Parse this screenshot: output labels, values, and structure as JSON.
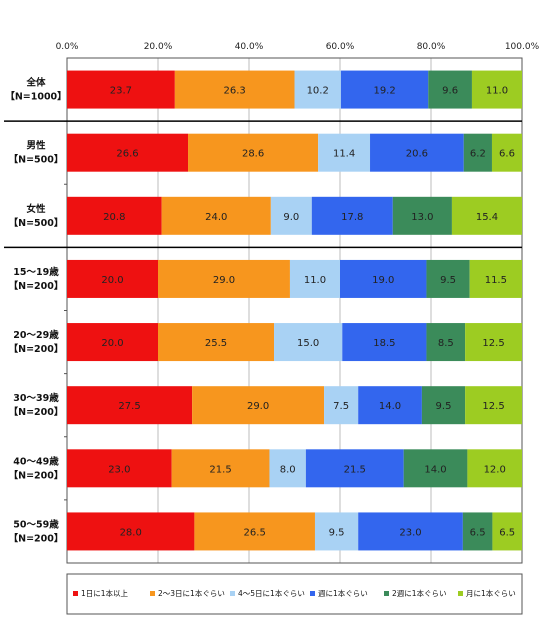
{
  "chart_data": {
    "type": "bar",
    "orientation": "horizontal",
    "stacked": true,
    "percent": true,
    "xlim": [
      0,
      100
    ],
    "x_ticks": [
      "0.0%",
      "20.0%",
      "40.0%",
      "60.0%",
      "80.0%",
      "100.0%"
    ],
    "grid": true,
    "legend_position": "bottom",
    "categories": [
      {
        "label": "全体",
        "sub": "【N=1000】"
      },
      {
        "label": "男性",
        "sub": "【N=500】"
      },
      {
        "label": "女性",
        "sub": "【N=500】"
      },
      {
        "label": "15～19歳",
        "sub": "【N=200】"
      },
      {
        "label": "20～29歳",
        "sub": "【N=200】"
      },
      {
        "label": "30～39歳",
        "sub": "【N=200】"
      },
      {
        "label": "40～49歳",
        "sub": "【N=200】"
      },
      {
        "label": "50～59歳",
        "sub": "【N=200】"
      }
    ],
    "groups": [
      [
        0
      ],
      [
        1,
        2
      ],
      [
        3,
        4,
        5,
        6,
        7
      ]
    ],
    "series": [
      {
        "name": "1日に1本以上",
        "color": "#ee1111",
        "values": [
          23.7,
          26.6,
          20.8,
          20.0,
          20.0,
          27.5,
          23.0,
          28.0
        ]
      },
      {
        "name": "2～3日に1本ぐらい",
        "color": "#f7961e",
        "values": [
          26.3,
          28.6,
          24.0,
          29.0,
          25.5,
          29.0,
          21.5,
          26.5
        ]
      },
      {
        "name": "4～5日に1本ぐらい",
        "color": "#a9d2f4",
        "values": [
          10.2,
          11.4,
          9.0,
          11.0,
          15.0,
          7.5,
          8.0,
          9.5
        ]
      },
      {
        "name": "週に1本ぐらい",
        "color": "#3366ee",
        "values": [
          19.2,
          20.6,
          17.8,
          19.0,
          18.5,
          14.0,
          21.5,
          23.0
        ]
      },
      {
        "name": "2週に1本ぐらい",
        "color": "#3b8b5a",
        "values": [
          9.6,
          6.2,
          13.0,
          9.5,
          8.5,
          9.5,
          14.0,
          6.5
        ]
      },
      {
        "name": "月に1本ぐらい",
        "color": "#9dcc22",
        "values": [
          11.0,
          6.6,
          15.4,
          11.5,
          12.5,
          12.5,
          12.0,
          6.5
        ]
      }
    ]
  }
}
